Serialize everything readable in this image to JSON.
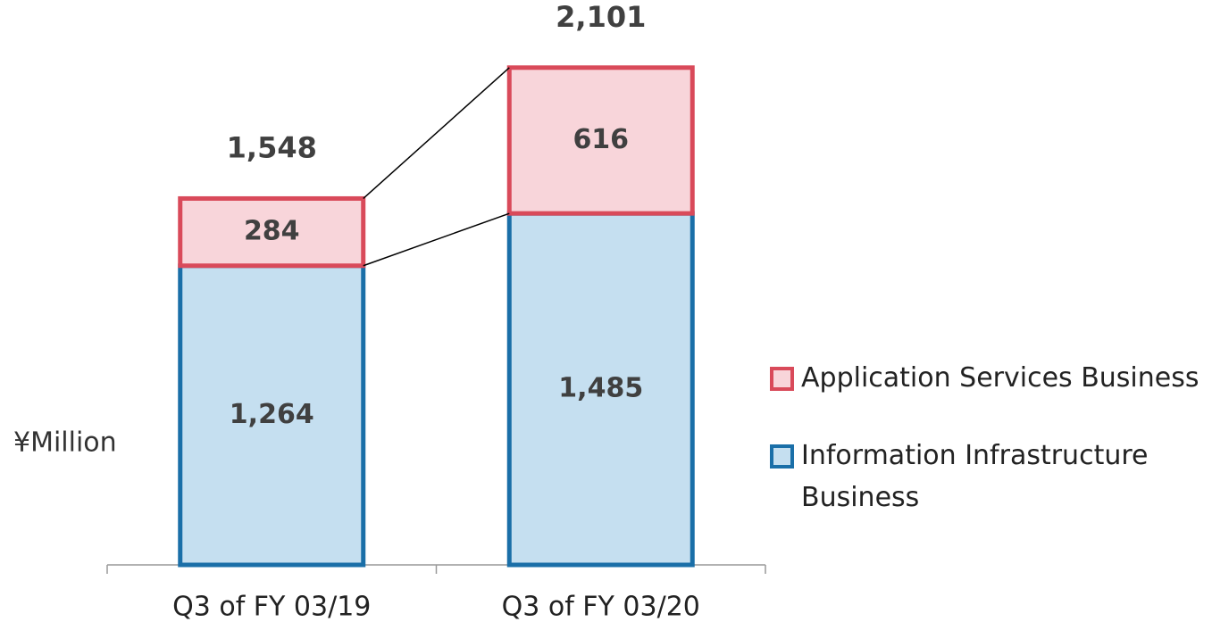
{
  "chart_data": {
    "type": "stacked_bar",
    "y_label": "¥Million",
    "categories": [
      "Q3 of FY 03/19",
      "Q3 of FY 03/20"
    ],
    "series": [
      {
        "name": "Information Infrastructure Business",
        "color": "#1a6fa8",
        "fill": "#c5dff0",
        "values": [
          1264,
          1485
        ],
        "value_labels": [
          "1,264",
          "1,485"
        ]
      },
      {
        "name": "Application Services Business",
        "color": "#d94a5a",
        "fill": "#f8d5da",
        "values": [
          284,
          616
        ],
        "value_labels": [
          "284",
          "616"
        ]
      }
    ],
    "totals": [
      1548,
      2101
    ],
    "total_labels": [
      "1,548",
      "2,101"
    ],
    "ylim": [
      0,
      2300
    ],
    "legend": "right"
  }
}
